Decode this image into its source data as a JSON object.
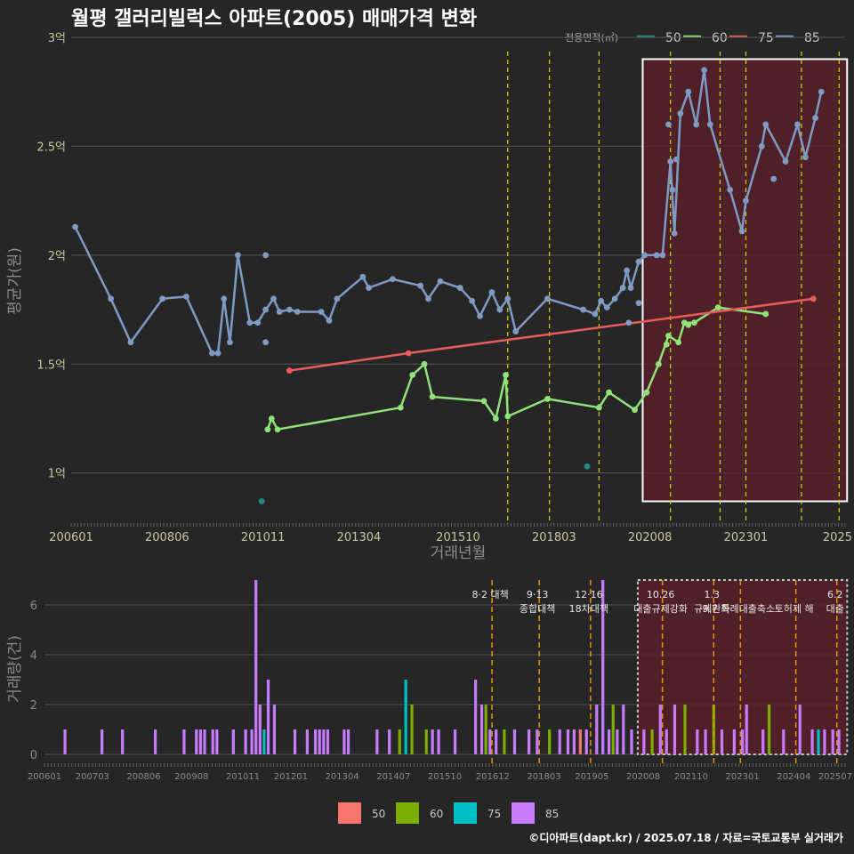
{
  "title": "월평 갤러리빌럭스 아파트(2005) 매매가격 변화",
  "credit": "©디아파트(dapt.kr) / 2025.07.18 / 자료=국토교통부 실거래가",
  "colors": {
    "background": "#262626",
    "series": {
      "50": "#1f8a87",
      "60": "#8fe37a",
      "75": "#e85c5c",
      "85": "#7f9bc4"
    },
    "volume": {
      "50": "#f8766d",
      "60": "#7cae00",
      "75": "#00bfc4",
      "85": "#c77cff"
    },
    "vline": "#d7d700",
    "vline_bottom": "#e69500",
    "highlight_fill": "#5a1f28",
    "highlight_border": "#ffffff"
  },
  "chart_data": [
    {
      "type": "line",
      "title": "월평 갤러리빌럭스 아파트(2005) 매매가격 변화",
      "xlabel": "거래년월",
      "ylabel": "평균가(원)",
      "x_range": [
        2006.0,
        2025.5
      ],
      "y_range": [
        0.77,
        3.0
      ],
      "x_ticks": [
        "200601",
        "200806",
        "201011",
        "201304",
        "201510",
        "201803",
        "202008",
        "202301",
        "2025"
      ],
      "x_tick_values": [
        2006.0,
        2008.4167,
        2010.8333,
        2013.25,
        2015.75,
        2018.1667,
        2020.5833,
        2023.0,
        2025.4
      ],
      "y_ticks": [
        "1억",
        "1.5억",
        "2억",
        "2.5억",
        "3억"
      ],
      "y_tick_values": [
        1.0,
        1.5,
        2.0,
        2.5,
        3.0
      ],
      "legend": {
        "title": "전용면적(㎡)",
        "position": "top-right",
        "entries": [
          "50",
          "60",
          "75",
          "85"
        ]
      },
      "highlight": {
        "x_start": 2020.4,
        "x_end": 2025.55,
        "y_start": 0.87,
        "y_end": 2.9
      },
      "vlines": [
        2017.0,
        2018.05,
        2019.3,
        2021.1,
        2022.35,
        2023.0,
        2024.4,
        2025.35
      ],
      "series": [
        {
          "name": "50",
          "points": [
            [
              2010.8,
              0.87
            ],
            [
              2019.0,
              1.03
            ]
          ],
          "line": false
        },
        {
          "name": "60",
          "points": [
            [
              2010.95,
              1.2
            ],
            [
              2011.05,
              1.25
            ],
            [
              2011.2,
              1.2
            ],
            [
              2014.3,
              1.3
            ],
            [
              2014.6,
              1.45
            ],
            [
              2014.9,
              1.5
            ],
            [
              2015.1,
              1.35
            ],
            [
              2016.4,
              1.33
            ],
            [
              2016.7,
              1.25
            ],
            [
              2016.95,
              1.45
            ],
            [
              2017.0,
              1.26
            ],
            [
              2018.0,
              1.34
            ],
            [
              2019.3,
              1.3
            ],
            [
              2019.55,
              1.37
            ],
            [
              2020.2,
              1.29
            ],
            [
              2020.5,
              1.37
            ],
            [
              2020.8,
              1.5
            ],
            [
              2021.05,
              1.63
            ],
            [
              2021.3,
              1.6
            ],
            [
              2021.45,
              1.69
            ],
            [
              2021.7,
              1.69
            ],
            [
              2022.3,
              1.76
            ],
            [
              2023.5,
              1.73
            ]
          ],
          "extra_points": [
            [
              2021.55,
              1.68
            ],
            [
              2021.0,
              1.59
            ]
          ]
        },
        {
          "name": "75",
          "points": [
            [
              2011.5,
              1.47
            ],
            [
              2014.5,
              1.55
            ],
            [
              2024.7,
              1.8
            ]
          ]
        },
        {
          "name": "85",
          "points": [
            [
              2006.1,
              2.13
            ],
            [
              2007.0,
              1.8
            ],
            [
              2007.5,
              1.6
            ],
            [
              2008.3,
              1.8
            ],
            [
              2008.9,
              1.81
            ],
            [
              2009.55,
              1.55
            ],
            [
              2009.7,
              1.55
            ],
            [
              2009.85,
              1.8
            ],
            [
              2010.0,
              1.6
            ],
            [
              2010.2,
              2.0
            ],
            [
              2010.5,
              1.69
            ],
            [
              2010.7,
              1.69
            ],
            [
              2010.9,
              1.75
            ],
            [
              2011.1,
              1.8
            ],
            [
              2011.25,
              1.74
            ],
            [
              2011.5,
              1.75
            ],
            [
              2011.7,
              1.74
            ],
            [
              2012.3,
              1.74
            ],
            [
              2012.5,
              1.7
            ],
            [
              2012.7,
              1.8
            ],
            [
              2013.35,
              1.9
            ],
            [
              2013.5,
              1.85
            ],
            [
              2014.1,
              1.89
            ],
            [
              2014.8,
              1.86
            ],
            [
              2015.0,
              1.8
            ],
            [
              2015.3,
              1.88
            ],
            [
              2015.8,
              1.85
            ],
            [
              2016.1,
              1.79
            ],
            [
              2016.3,
              1.72
            ],
            [
              2016.6,
              1.83
            ],
            [
              2016.8,
              1.75
            ],
            [
              2017.0,
              1.8
            ],
            [
              2017.2,
              1.65
            ],
            [
              2018.0,
              1.8
            ],
            [
              2018.9,
              1.75
            ],
            [
              2019.2,
              1.73
            ],
            [
              2019.35,
              1.79
            ],
            [
              2019.5,
              1.76
            ],
            [
              2019.7,
              1.8
            ],
            [
              2019.9,
              1.85
            ],
            [
              2020.0,
              1.93
            ],
            [
              2020.1,
              1.85
            ],
            [
              2020.3,
              1.97
            ],
            [
              2020.45,
              2.0
            ],
            [
              2020.75,
              2.0
            ],
            [
              2020.9,
              2.0
            ],
            [
              2021.1,
              2.43
            ],
            [
              2021.2,
              2.1
            ],
            [
              2021.35,
              2.65
            ],
            [
              2021.55,
              2.75
            ],
            [
              2021.75,
              2.6
            ],
            [
              2021.95,
              2.85
            ],
            [
              2022.1,
              2.6
            ],
            [
              2022.6,
              2.3
            ],
            [
              2022.9,
              2.11
            ],
            [
              2023.0,
              2.25
            ],
            [
              2023.4,
              2.5
            ],
            [
              2023.5,
              2.6
            ],
            [
              2024.0,
              2.43
            ],
            [
              2024.3,
              2.6
            ],
            [
              2024.5,
              2.45
            ],
            [
              2024.75,
              2.63
            ],
            [
              2024.9,
              2.75
            ]
          ],
          "extra_points": [
            [
              2010.9,
              2.0
            ],
            [
              2010.9,
              1.6
            ],
            [
              2020.3,
              1.78
            ],
            [
              2020.05,
              1.69
            ],
            [
              2021.15,
              2.3
            ],
            [
              2021.05,
              2.6
            ],
            [
              2023.7,
              2.35
            ],
            [
              2021.25,
              2.44
            ]
          ]
        }
      ]
    },
    {
      "type": "bar",
      "ylabel": "거래량(건)",
      "x_range": [
        2006.0,
        2025.5
      ],
      "y_range": [
        0,
        7
      ],
      "x_ticks": [
        "200601",
        "200703",
        "200806",
        "200908",
        "201011",
        "201201",
        "201304",
        "201407",
        "201510",
        "201612",
        "201803",
        "201905",
        "202008",
        "202110",
        "202301",
        "202404",
        "202507"
      ],
      "x_tick_values": [
        2006.0,
        2007.1667,
        2008.4167,
        2009.5833,
        2010.8333,
        2012.0,
        2013.25,
        2014.5,
        2015.75,
        2016.9167,
        2018.1667,
        2019.3333,
        2020.5833,
        2021.75,
        2023.0,
        2024.25,
        2025.5
      ],
      "y_ticks": [
        "0",
        "2",
        "4",
        "6"
      ],
      "y_tick_values": [
        0,
        2,
        4,
        6
      ],
      "legend": {
        "position": "bottom",
        "entries": [
          "50",
          "60",
          "75",
          "85"
        ]
      },
      "highlight": {
        "x_start": 2020.45,
        "x_end": 2025.55,
        "y_start": 0,
        "y_end": 7.0
      },
      "vlines": [
        2016.9,
        2018.05,
        2019.3,
        2021.05,
        2022.3,
        2022.95,
        2024.3,
        2025.3
      ],
      "annotations": [
        {
          "x": 2016.9,
          "lines": [
            "8·2 대책"
          ]
        },
        {
          "x": 2018.05,
          "lines": [
            "9·13",
            "종합대책"
          ]
        },
        {
          "x": 2019.3,
          "lines": [
            "12·16",
            "18차대책"
          ]
        },
        {
          "x": 2021.05,
          "lines": [
            "10.26",
            "대출규제강화"
          ]
        },
        {
          "x": 2022.3,
          "lines": [
            "1.3",
            "규제완화"
          ]
        },
        {
          "x": 2022.95,
          "lines": [
            "",
            "9.7 특례대출축소"
          ]
        },
        {
          "x": 2024.3,
          "lines": [
            "",
            "토허제 해"
          ]
        },
        {
          "x": 2025.3,
          "lines": [
            "6.2",
            "대출"
          ]
        }
      ],
      "bars": [
        {
          "x": 2006.5,
          "s": "85",
          "v": 1
        },
        {
          "x": 2007.4,
          "s": "85",
          "v": 1
        },
        {
          "x": 2007.9,
          "s": "85",
          "v": 1
        },
        {
          "x": 2008.7,
          "s": "85",
          "v": 1
        },
        {
          "x": 2009.4,
          "s": "85",
          "v": 1
        },
        {
          "x": 2009.7,
          "s": "85",
          "v": 1
        },
        {
          "x": 2009.8,
          "s": "85",
          "v": 1
        },
        {
          "x": 2009.9,
          "s": "85",
          "v": 1
        },
        {
          "x": 2010.1,
          "s": "85",
          "v": 1
        },
        {
          "x": 2010.2,
          "s": "85",
          "v": 1
        },
        {
          "x": 2010.6,
          "s": "85",
          "v": 1
        },
        {
          "x": 2010.9,
          "s": "85",
          "v": 1
        },
        {
          "x": 2011.05,
          "s": "85",
          "v": 1
        },
        {
          "x": 2011.15,
          "s": "85",
          "v": 7
        },
        {
          "x": 2011.25,
          "s": "85",
          "v": 2
        },
        {
          "x": 2011.35,
          "s": "75",
          "v": 1
        },
        {
          "x": 2011.45,
          "s": "85",
          "v": 3
        },
        {
          "x": 2011.6,
          "s": "85",
          "v": 2
        },
        {
          "x": 2012.1,
          "s": "85",
          "v": 1
        },
        {
          "x": 2012.4,
          "s": "85",
          "v": 1
        },
        {
          "x": 2012.6,
          "s": "85",
          "v": 1
        },
        {
          "x": 2012.7,
          "s": "85",
          "v": 1
        },
        {
          "x": 2012.8,
          "s": "85",
          "v": 1
        },
        {
          "x": 2012.9,
          "s": "85",
          "v": 1
        },
        {
          "x": 2013.3,
          "s": "85",
          "v": 1
        },
        {
          "x": 2013.4,
          "s": "85",
          "v": 1
        },
        {
          "x": 2014.1,
          "s": "85",
          "v": 1
        },
        {
          "x": 2014.4,
          "s": "85",
          "v": 1
        },
        {
          "x": 2014.65,
          "s": "60",
          "v": 1
        },
        {
          "x": 2014.8,
          "s": "75",
          "v": 3
        },
        {
          "x": 2014.95,
          "s": "60",
          "v": 2
        },
        {
          "x": 2015.3,
          "s": "60",
          "v": 1
        },
        {
          "x": 2015.45,
          "s": "85",
          "v": 1
        },
        {
          "x": 2015.6,
          "s": "85",
          "v": 1
        },
        {
          "x": 2016.0,
          "s": "85",
          "v": 1
        },
        {
          "x": 2016.5,
          "s": "85",
          "v": 3
        },
        {
          "x": 2016.65,
          "s": "85",
          "v": 2
        },
        {
          "x": 2016.75,
          "s": "60",
          "v": 2
        },
        {
          "x": 2016.85,
          "s": "85",
          "v": 1
        },
        {
          "x": 2017.0,
          "s": "85",
          "v": 1
        },
        {
          "x": 2017.2,
          "s": "60",
          "v": 1
        },
        {
          "x": 2017.45,
          "s": "85",
          "v": 1
        },
        {
          "x": 2017.8,
          "s": "85",
          "v": 1
        },
        {
          "x": 2018.0,
          "s": "85",
          "v": 1
        },
        {
          "x": 2018.3,
          "s": "60",
          "v": 1
        },
        {
          "x": 2018.55,
          "s": "85",
          "v": 1
        },
        {
          "x": 2018.75,
          "s": "85",
          "v": 1
        },
        {
          "x": 2018.9,
          "s": "85",
          "v": 1
        },
        {
          "x": 2019.05,
          "s": "50",
          "v": 1
        },
        {
          "x": 2019.2,
          "s": "85",
          "v": 1
        },
        {
          "x": 2019.45,
          "s": "85",
          "v": 2
        },
        {
          "x": 2019.6,
          "s": "85",
          "v": 7
        },
        {
          "x": 2019.75,
          "s": "85",
          "v": 1
        },
        {
          "x": 2019.85,
          "s": "60",
          "v": 2
        },
        {
          "x": 2019.95,
          "s": "85",
          "v": 1
        },
        {
          "x": 2020.1,
          "s": "85",
          "v": 2
        },
        {
          "x": 2020.3,
          "s": "85",
          "v": 1
        },
        {
          "x": 2020.6,
          "s": "85",
          "v": 1
        },
        {
          "x": 2020.8,
          "s": "60",
          "v": 1
        },
        {
          "x": 2021.0,
          "s": "85",
          "v": 2
        },
        {
          "x": 2021.15,
          "s": "85",
          "v": 1
        },
        {
          "x": 2021.35,
          "s": "85",
          "v": 2
        },
        {
          "x": 2021.6,
          "s": "60",
          "v": 2
        },
        {
          "x": 2021.9,
          "s": "85",
          "v": 1
        },
        {
          "x": 2022.1,
          "s": "85",
          "v": 1
        },
        {
          "x": 2022.3,
          "s": "60",
          "v": 2
        },
        {
          "x": 2022.5,
          "s": "85",
          "v": 1
        },
        {
          "x": 2022.8,
          "s": "85",
          "v": 1
        },
        {
          "x": 2023.0,
          "s": "85",
          "v": 1
        },
        {
          "x": 2023.1,
          "s": "85",
          "v": 2
        },
        {
          "x": 2023.5,
          "s": "85",
          "v": 1
        },
        {
          "x": 2023.65,
          "s": "60",
          "v": 2
        },
        {
          "x": 2024.0,
          "s": "85",
          "v": 1
        },
        {
          "x": 2024.4,
          "s": "85",
          "v": 2
        },
        {
          "x": 2024.7,
          "s": "85",
          "v": 1
        },
        {
          "x": 2024.85,
          "s": "75",
          "v": 1
        },
        {
          "x": 2025.0,
          "s": "85",
          "v": 1
        },
        {
          "x": 2025.2,
          "s": "85",
          "v": 1
        },
        {
          "x": 2025.35,
          "s": "85",
          "v": 1
        }
      ]
    }
  ]
}
